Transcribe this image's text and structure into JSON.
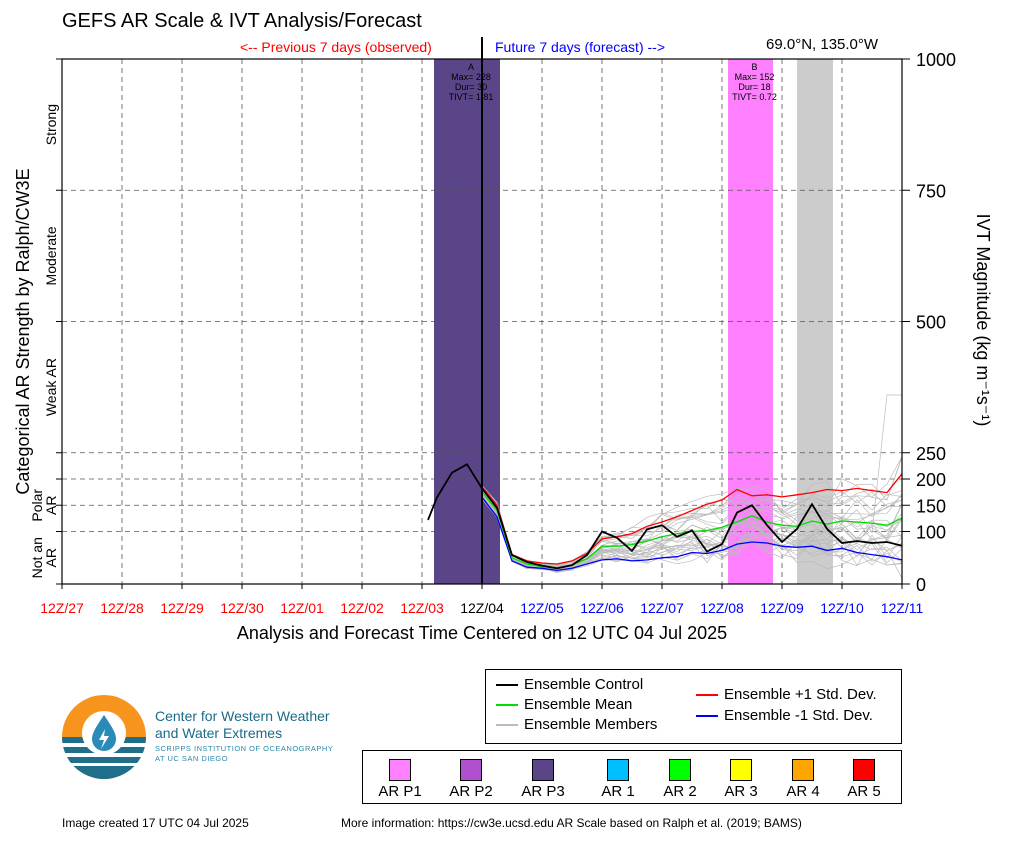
{
  "header": {
    "title": "GEFS AR Scale & IVT Analysis/Forecast",
    "previous_label": "<-- Previous 7 days (observed)",
    "future_label": "Future 7 days (forecast) -->",
    "location": "69.0°N, 135.0°W"
  },
  "axes": {
    "left_label": "Categorical AR Strength by Ralph/CW3E",
    "right_label": "IVT Magnitude (kg m⁻¹s⁻¹)",
    "x_label": "Analysis and Forecast Time Centered on 12 UTC 04 Jul 2025",
    "categories": [
      {
        "label": "Strong",
        "lo": 750,
        "hi": 1000
      },
      {
        "label": "Moderate",
        "lo": 500,
        "hi": 750
      },
      {
        "label": "Weak AR",
        "lo": 250,
        "hi": 500
      },
      {
        "label": "Polar AR",
        "lo": 100,
        "hi": 200
      },
      {
        "label": "Not an AR",
        "lo": 0,
        "hi": 100
      }
    ]
  },
  "chart_data": {
    "type": "line",
    "x_ticks": [
      "12Z/27",
      "12Z/28",
      "12Z/29",
      "12Z/30",
      "12Z/01",
      "12Z/02",
      "12Z/03",
      "12Z/04",
      "12Z/05",
      "12Z/06",
      "12Z/07",
      "12Z/08",
      "12Z/09",
      "12Z/10",
      "12Z/11"
    ],
    "x_tick_colors": [
      "#ff0000",
      "#ff0000",
      "#ff0000",
      "#ff0000",
      "#ff0000",
      "#ff0000",
      "#ff0000",
      "#000000",
      "#0000ff",
      "#0000ff",
      "#0000ff",
      "#0000ff",
      "#0000ff",
      "#0000ff",
      "#0000ff"
    ],
    "xlim": [
      0,
      14
    ],
    "y_ticks": [
      0,
      100,
      150,
      200,
      250,
      500,
      750,
      1000
    ],
    "ylim": [
      0,
      1000
    ],
    "current_time": 7,
    "shaded_periods": [
      {
        "x0": 6.2,
        "x1": 7.3,
        "color": "#5b4589",
        "label": "A",
        "max": "Max= 228",
        "dur": "Dur= 30",
        "tivt": "TIVT= 1.81"
      },
      {
        "x0": 11.1,
        "x1": 11.85,
        "color": "#ff80ff",
        "label": "B",
        "max": "Max= 152",
        "dur": "Dur= 18",
        "tivt": "TIVT= 0.72"
      },
      {
        "x0": 12.25,
        "x1": 12.85,
        "color": "#cccccc",
        "label": "",
        "max": "",
        "dur": "",
        "tivt": ""
      }
    ],
    "series": [
      {
        "name": "Ensemble Control",
        "color": "#000000",
        "x": [
          6.1,
          6.25,
          6.5,
          6.75,
          7.0,
          7.25,
          7.5,
          7.75,
          8.0,
          8.25,
          8.5,
          8.75,
          9.0,
          9.25,
          9.5,
          9.75,
          10.0,
          10.25,
          10.5,
          10.75,
          11.0,
          11.25,
          11.5,
          11.75,
          12.0,
          12.25,
          12.5,
          12.75,
          13.0,
          13.25,
          13.5,
          13.75,
          14.0
        ],
        "y": [
          122,
          165,
          212,
          228,
          182,
          145,
          55,
          42,
          35,
          30,
          36,
          55,
          100,
          88,
          63,
          104,
          112,
          90,
          102,
          62,
          76,
          136,
          150,
          112,
          80,
          105,
          152,
          105,
          78,
          82,
          78,
          80,
          73
        ]
      },
      {
        "name": "Ensemble Mean",
        "color": "#00dd00",
        "x": [
          7.0,
          7.25,
          7.5,
          7.75,
          8.0,
          8.25,
          8.5,
          8.75,
          9.0,
          9.25,
          9.5,
          9.75,
          10.0,
          10.25,
          10.5,
          10.75,
          11.0,
          11.25,
          11.5,
          11.75,
          12.0,
          12.25,
          12.5,
          12.75,
          13.0,
          13.25,
          13.5,
          13.75,
          14.0
        ],
        "y": [
          175,
          140,
          50,
          38,
          33,
          30,
          36,
          48,
          72,
          72,
          75,
          82,
          90,
          96,
          100,
          102,
          108,
          118,
          130,
          118,
          112,
          110,
          120,
          114,
          120,
          118,
          116,
          112,
          126
        ]
      },
      {
        "name": "Ensemble +1 Std. Dev.",
        "color": "#ff0000",
        "x": [
          7.0,
          7.25,
          7.5,
          7.75,
          8.0,
          8.25,
          8.5,
          8.75,
          9.0,
          9.25,
          9.5,
          9.75,
          10.0,
          10.25,
          10.5,
          10.75,
          11.0,
          11.25,
          11.5,
          11.75,
          12.0,
          12.25,
          12.5,
          12.75,
          13.0,
          13.25,
          13.5,
          13.75,
          14.0
        ],
        "y": [
          185,
          150,
          56,
          44,
          40,
          38,
          44,
          58,
          86,
          90,
          96,
          110,
          118,
          128,
          140,
          152,
          160,
          180,
          168,
          170,
          166,
          170,
          174,
          180,
          178,
          182,
          178,
          174,
          210
        ]
      },
      {
        "name": "Ensemble -1 Std. Dev.",
        "color": "#0000ff",
        "x": [
          7.0,
          7.25,
          7.5,
          7.75,
          8.0,
          8.25,
          8.5,
          8.75,
          9.0,
          9.25,
          9.5,
          9.75,
          10.0,
          10.25,
          10.5,
          10.75,
          11.0,
          11.25,
          11.5,
          11.75,
          12.0,
          12.25,
          12.5,
          12.75,
          13.0,
          13.25,
          13.5,
          13.75,
          14.0
        ],
        "y": [
          165,
          128,
          44,
          32,
          30,
          26,
          30,
          38,
          46,
          48,
          44,
          46,
          50,
          52,
          60,
          58,
          64,
          76,
          80,
          78,
          72,
          70,
          72,
          64,
          68,
          60,
          56,
          52,
          46
        ]
      }
    ],
    "members": {
      "name": "Ensemble Members",
      "color": "#bbbbbb",
      "count": 30
    }
  },
  "legend": {
    "items": [
      {
        "label": "Ensemble Control",
        "color": "#000000"
      },
      {
        "label": "Ensemble Mean",
        "color": "#00dd00"
      },
      {
        "label": "Ensemble Members",
        "color": "#bbbbbb"
      },
      {
        "label": "Ensemble +1 Std. Dev.",
        "color": "#ff0000"
      },
      {
        "label": "Ensemble -1 Std. Dev.",
        "color": "#0000ff"
      }
    ]
  },
  "ar_scale": [
    {
      "label": "AR P1",
      "color": "#ff80ff"
    },
    {
      "label": "AR P2",
      "color": "#b04fd0"
    },
    {
      "label": "AR P3",
      "color": "#5b4589"
    },
    {
      "label": "AR 1",
      "color": "#00bfff"
    },
    {
      "label": "AR 2",
      "color": "#00ff00"
    },
    {
      "label": "AR 3",
      "color": "#ffff00"
    },
    {
      "label": "AR 4",
      "color": "#ffa500"
    },
    {
      "label": "AR 5",
      "color": "#ff0000"
    }
  ],
  "logo": {
    "line1": "Center for Western Weather",
    "line2": "and Water Extremes",
    "sub1": "SCRIPPS INSTITUTION OF OCEANOGRAPHY",
    "sub2": "AT UC SAN DIEGO"
  },
  "footer": {
    "created": "Image created 17 UTC 04 Jul 2025",
    "more_info": "More information: https://cw3e.ucsd.edu AR Scale based on Ralph et al. (2019; BAMS)"
  }
}
